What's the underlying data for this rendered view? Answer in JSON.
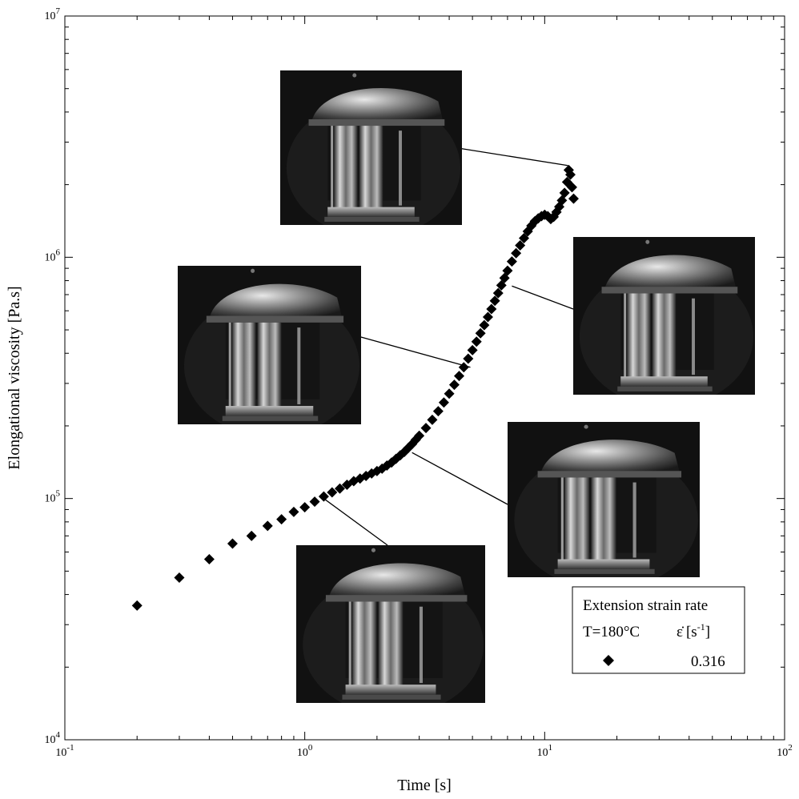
{
  "chart_data": {
    "type": "scatter",
    "xlabel": "Time [s]",
    "ylabel": "Elongational viscosity [Pa.s]",
    "x_scale": "log",
    "y_scale": "log",
    "xlim": [
      0.1,
      100
    ],
    "ylim": [
      10000,
      10000000
    ],
    "grid": false,
    "x_ticks": [
      {
        "base": "10",
        "exp": "-1",
        "value": 0.1
      },
      {
        "base": "10",
        "exp": "0",
        "value": 1
      },
      {
        "base": "10",
        "exp": "1",
        "value": 10
      },
      {
        "base": "10",
        "exp": "2",
        "value": 100
      }
    ],
    "y_ticks": [
      {
        "base": "10",
        "exp": "4",
        "value": 10000
      },
      {
        "base": "10",
        "exp": "5",
        "value": 100000
      },
      {
        "base": "10",
        "exp": "6",
        "value": 1000000
      },
      {
        "base": "10",
        "exp": "7",
        "value": 10000000
      }
    ],
    "legend": {
      "position": "bottom-right",
      "title": "Extension strain rate",
      "col1_header": "T=180°C",
      "col2_header_symbol": "ε̇",
      "col2_header_unit": "[s",
      "col2_header_exp": "-1",
      "col2_header_close": "]",
      "entries": [
        {
          "marker": "diamond",
          "value": "0.316"
        }
      ]
    },
    "marker": {
      "shape": "diamond",
      "color": "#000000"
    },
    "series": [
      {
        "marker": "diamond",
        "x": [
          0.2,
          0.3,
          0.4,
          0.5,
          0.6,
          0.7,
          0.8,
          0.9,
          1.0,
          1.1,
          1.2,
          1.3,
          1.4,
          1.5,
          1.6,
          1.7,
          1.8,
          1.9,
          2.0,
          2.1,
          2.2,
          2.3,
          2.4,
          2.5,
          2.6,
          2.7,
          2.8,
          2.9,
          3.0,
          3.2,
          3.4,
          3.6,
          3.8,
          4.0,
          4.2,
          4.4,
          4.6,
          4.8,
          5.0,
          5.2,
          5.4,
          5.6,
          5.8,
          6.0,
          6.2,
          6.4,
          6.6,
          6.8,
          7.0,
          7.3,
          7.6,
          7.9,
          8.2,
          8.5,
          8.8,
          9.1,
          9.4,
          9.7,
          10.0,
          10.3,
          10.6,
          10.9,
          11.2,
          11.5,
          11.8,
          12.1,
          12.4,
          12.6,
          12.8,
          13.0,
          13.2
        ],
        "y": [
          36000,
          47000,
          56000,
          65000,
          70000,
          77000,
          82000,
          88000,
          92000,
          97000,
          102000,
          106000,
          110000,
          114000,
          118000,
          121000,
          124000,
          127000,
          130000,
          133000,
          137000,
          141000,
          146000,
          151000,
          156000,
          162000,
          168000,
          175000,
          182000,
          196000,
          212000,
          230000,
          250000,
          272000,
          296000,
          322000,
          350000,
          380000,
          412000,
          447000,
          484000,
          523000,
          565000,
          610000,
          660000,
          710000,
          765000,
          820000,
          880000,
          960000,
          1040000,
          1120000,
          1200000,
          1280000,
          1350000,
          1410000,
          1450000,
          1480000,
          1500000,
          1480000,
          1440000,
          1470000,
          1540000,
          1620000,
          1720000,
          1850000,
          2050000,
          2300000,
          2200000,
          1950000,
          1750000
        ]
      }
    ],
    "annotations": [
      {
        "name": "photo-top",
        "target_x": 12.5,
        "target_y": 2400000
      },
      {
        "name": "photo-right-upper",
        "target_x": 7.3,
        "target_y": 760000
      },
      {
        "name": "photo-left",
        "target_x": 4.9,
        "target_y": 350000
      },
      {
        "name": "photo-right-lower",
        "target_x": 2.8,
        "target_y": 155000
      },
      {
        "name": "photo-bottom",
        "target_x": 1.2,
        "target_y": 100000
      }
    ]
  }
}
